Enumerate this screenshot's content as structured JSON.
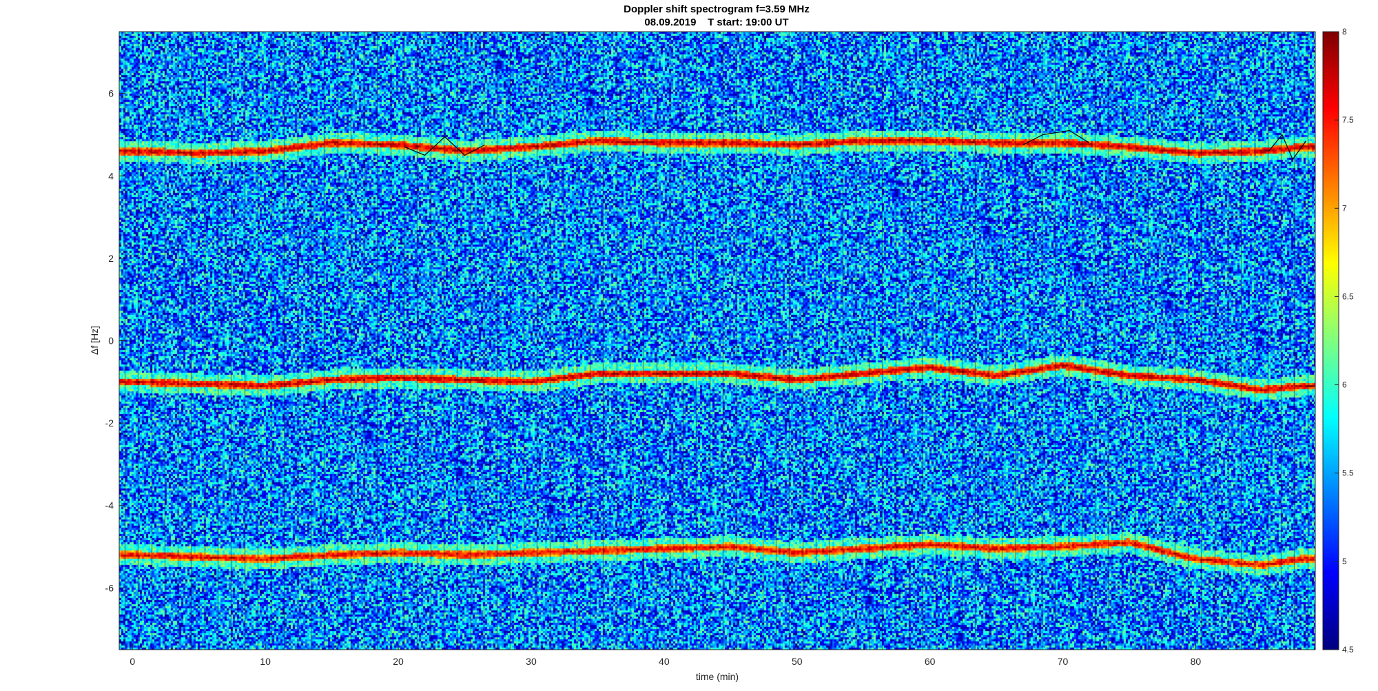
{
  "chart_data": {
    "type": "heatmap",
    "title": "Doppler shift spectrogram f=3.59 MHz",
    "subtitle": "08.09.2019    T start: 19:00 UT",
    "xlabel": "time (min)",
    "ylabel": "Δf [Hz]",
    "xlim": [
      -1,
      89
    ],
    "ylim": [
      -7.5,
      7.5
    ],
    "x_ticks": [
      0,
      10,
      20,
      30,
      40,
      50,
      60,
      70,
      80
    ],
    "y_ticks": [
      -6,
      -4,
      -2,
      0,
      2,
      4,
      6
    ],
    "colorbar": {
      "colormap": "jet",
      "range": [
        4.5,
        8
      ],
      "ticks": [
        4.5,
        5,
        5.5,
        6,
        6.5,
        7,
        7.5,
        8
      ]
    },
    "background_level": 5.4,
    "traces": [
      {
        "time": [
          0,
          5,
          10,
          15,
          20,
          25,
          30,
          35,
          40,
          45,
          50,
          55,
          60,
          65,
          70,
          75,
          80,
          85,
          88
        ],
        "df": [
          4.6,
          4.55,
          4.6,
          4.8,
          4.75,
          4.6,
          4.7,
          4.85,
          4.8,
          4.8,
          4.75,
          4.85,
          4.85,
          4.8,
          4.8,
          4.7,
          4.55,
          4.6,
          4.7
        ],
        "level": 7.8
      },
      {
        "time": [
          0,
          5,
          10,
          15,
          20,
          25,
          30,
          35,
          40,
          45,
          50,
          55,
          60,
          65,
          70,
          75,
          80,
          85,
          88
        ],
        "df": [
          -1.0,
          -1.05,
          -1.1,
          -0.95,
          -0.9,
          -0.95,
          -1.0,
          -0.8,
          -0.8,
          -0.8,
          -0.95,
          -0.8,
          -0.65,
          -0.85,
          -0.6,
          -0.85,
          -0.95,
          -1.2,
          -1.1
        ],
        "level": 7.8
      },
      {
        "time": [
          0,
          5,
          10,
          15,
          20,
          25,
          30,
          35,
          40,
          45,
          50,
          55,
          60,
          65,
          70,
          75,
          80,
          85,
          88
        ],
        "df": [
          -5.2,
          -5.25,
          -5.3,
          -5.2,
          -5.15,
          -5.2,
          -5.15,
          -5.1,
          -5.05,
          -5.0,
          -5.15,
          -5.05,
          -4.95,
          -5.05,
          -5.0,
          -4.9,
          -5.3,
          -5.45,
          -5.3
        ],
        "level": 7.7
      }
    ],
    "overlay_line": {
      "color": "#000000",
      "segments": [
        {
          "time": [
            20.5,
            22,
            23.5,
            25,
            26.5
          ],
          "df": [
            4.7,
            4.5,
            4.95,
            4.5,
            4.75
          ]
        },
        {
          "time": [
            67,
            68.5,
            70.5,
            72
          ],
          "df": [
            4.75,
            5.0,
            5.1,
            4.8
          ]
        },
        {
          "time": [
            85.5,
            86.5,
            87.3,
            88.3
          ],
          "df": [
            4.6,
            5.0,
            4.4,
            4.85
          ]
        }
      ]
    }
  }
}
